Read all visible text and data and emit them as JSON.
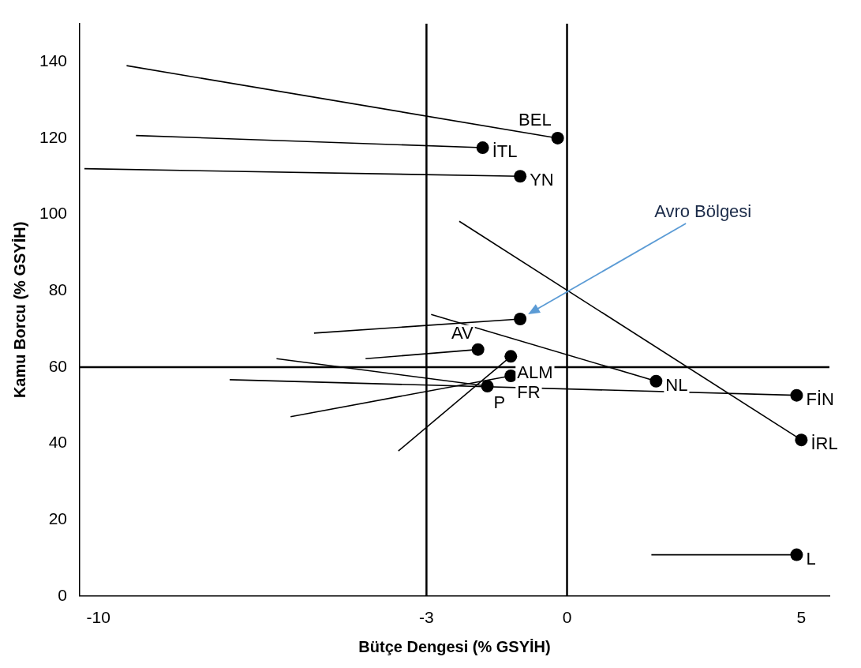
{
  "chart_data": {
    "type": "line",
    "xlabel": "Bütçe Dengesi (% GSYİH)",
    "ylabel": "Kamu Borcu (% GSYİH)",
    "xlim": [
      -10.4,
      5.6
    ],
    "xticks": [
      -10,
      -3,
      0,
      5
    ],
    "ylim": [
      0,
      150
    ],
    "yticks": [
      0,
      20,
      40,
      60,
      80,
      100,
      120,
      140
    ],
    "grid": false,
    "legend": false,
    "ref_lines": [
      {
        "axis": "y",
        "value": 60,
        "color": "#000000"
      },
      {
        "axis": "x",
        "value": -3,
        "color": "#000000"
      },
      {
        "axis": "x",
        "value": 0,
        "color": "#000000"
      }
    ],
    "annotations": [
      "Avro Bölgesi"
    ],
    "series": [
      {
        "color": "#000000",
        "marker": "none",
        "x": [
          -9.4,
          -0.2
        ],
        "values": [
          139,
          120
        ]
      },
      {
        "color": "#000000",
        "marker": "none",
        "x": [
          -9.2,
          -1.8
        ],
        "values": [
          120.7,
          117.5
        ]
      },
      {
        "color": "#000000",
        "marker": "none",
        "x": [
          -10.3,
          -1.0
        ],
        "values": [
          112,
          110
        ]
      },
      {
        "color": "#000000",
        "marker": "none",
        "x": [
          -5.4,
          -1.0
        ],
        "values": [
          68.9,
          72.6
        ]
      },
      {
        "color": "#000000",
        "marker": "none",
        "x": [
          -4.3,
          -1.9
        ],
        "values": [
          62.2,
          64.6
        ]
      },
      {
        "color": "#000000",
        "marker": "none",
        "x": [
          -3.6,
          -1.2
        ],
        "values": [
          38,
          62.8
        ]
      },
      {
        "color": "#000000",
        "marker": "none",
        "x": [
          -5.9,
          -1.2
        ],
        "values": [
          47,
          57.7
        ]
      },
      {
        "color": "#000000",
        "marker": "none",
        "x": [
          -6.2,
          -1.7
        ],
        "values": [
          62.2,
          55
        ]
      },
      {
        "color": "#000000",
        "marker": "none",
        "x": [
          -2.9,
          1.9
        ],
        "values": [
          73.8,
          56.3
        ]
      },
      {
        "color": "#000000",
        "marker": "none",
        "x": [
          -7.2,
          4.9
        ],
        "values": [
          56.7,
          52.6
        ]
      },
      {
        "color": "#000000",
        "marker": "none",
        "x": [
          -2.3,
          5.0
        ],
        "values": [
          98.2,
          40.9
        ]
      },
      {
        "color": "#000000",
        "marker": "none",
        "x": [
          1.8,
          4.9
        ],
        "values": [
          10.8,
          10.8
        ]
      },
      {
        "type": "scatter",
        "name": "BEL",
        "color": "#000000",
        "marker": "circle",
        "x": [
          -0.2
        ],
        "values": [
          120
        ]
      },
      {
        "type": "scatter",
        "name": "İTL",
        "color": "#000000",
        "marker": "circle",
        "x": [
          -1.8
        ],
        "values": [
          117.5
        ]
      },
      {
        "type": "scatter",
        "name": "YN",
        "color": "#000000",
        "marker": "circle",
        "x": [
          -1.0
        ],
        "values": [
          110
        ]
      },
      {
        "type": "scatter",
        "color": "#000000",
        "marker": "circle",
        "x": [
          -1.0
        ],
        "values": [
          72.6
        ]
      },
      {
        "type": "scatter",
        "name": "AV",
        "color": "#000000",
        "marker": "circle",
        "x": [
          -1.9
        ],
        "values": [
          64.6
        ]
      },
      {
        "type": "scatter",
        "name": "ALM",
        "color": "#000000",
        "marker": "circle",
        "x": [
          -1.2
        ],
        "values": [
          62.8
        ]
      },
      {
        "type": "scatter",
        "name": "FR",
        "color": "#000000",
        "marker": "circle",
        "x": [
          -1.2
        ],
        "values": [
          57.7
        ]
      },
      {
        "type": "scatter",
        "name": "P",
        "color": "#000000",
        "marker": "circle",
        "x": [
          -1.7
        ],
        "values": [
          55
        ]
      },
      {
        "type": "scatter",
        "name": "NL",
        "color": "#000000",
        "marker": "circle",
        "x": [
          1.9
        ],
        "values": [
          56.3
        ]
      },
      {
        "type": "scatter",
        "name": "FİN",
        "color": "#000000",
        "marker": "circle",
        "x": [
          4.9
        ],
        "values": [
          52.6
        ]
      },
      {
        "type": "scatter",
        "name": "İRL",
        "color": "#000000",
        "marker": "circle",
        "x": [
          5.0
        ],
        "values": [
          40.9
        ]
      },
      {
        "type": "scatter",
        "name": "L",
        "color": "#000000",
        "marker": "circle",
        "x": [
          4.9
        ],
        "values": [
          10.8
        ]
      }
    ]
  }
}
